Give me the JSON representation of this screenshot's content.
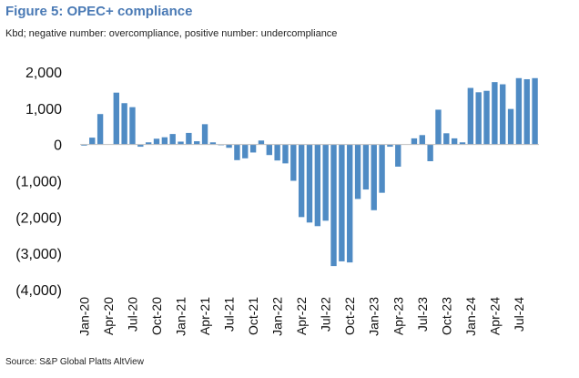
{
  "title": "Figure 5: OPEC+ compliance",
  "subtitle": "Kbd; negative number: overcompliance, positive number: undercompliance",
  "source": "Source: S&P Global Platts AltView",
  "colors": {
    "bar": "#4f8bc4",
    "title": "#4a7ab5",
    "axis": "#bfbfbf"
  },
  "chart_data": {
    "type": "bar",
    "categories": [
      "Jan-20",
      "Feb-20",
      "Mar-20",
      "Apr-20",
      "May-20",
      "Jun-20",
      "Jul-20",
      "Aug-20",
      "Sep-20",
      "Oct-20",
      "Nov-20",
      "Dec-20",
      "Jan-21",
      "Feb-21",
      "Mar-21",
      "Apr-21",
      "May-21",
      "Jun-21",
      "Jul-21",
      "Aug-21",
      "Sep-21",
      "Oct-21",
      "Nov-21",
      "Dec-21",
      "Jan-22",
      "Feb-22",
      "Mar-22",
      "Apr-22",
      "May-22",
      "Jun-22",
      "Jul-22",
      "Aug-22",
      "Sep-22",
      "Oct-22",
      "Nov-22",
      "Dec-22",
      "Jan-23",
      "Feb-23",
      "Mar-23",
      "Apr-23",
      "May-23",
      "Jun-23",
      "Jul-23",
      "Aug-23",
      "Sep-23",
      "Oct-23",
      "Nov-23",
      "Dec-23",
      "Jan-24",
      "Feb-24",
      "Mar-24",
      "Apr-24",
      "May-24",
      "Jun-24",
      "Jul-24",
      "Aug-24",
      "Sep-24"
    ],
    "values": [
      -30,
      190,
      840,
      0,
      1430,
      1140,
      1030,
      -60,
      60,
      160,
      200,
      290,
      80,
      320,
      90,
      560,
      60,
      -10,
      -90,
      -430,
      -380,
      -220,
      110,
      -290,
      -440,
      -520,
      -1000,
      -2000,
      -2150,
      -2250,
      -2100,
      -3350,
      -3220,
      -3250,
      -1500,
      -1240,
      -1810,
      -1330,
      -60,
      -610,
      0,
      170,
      260,
      -460,
      960,
      310,
      170,
      60,
      1560,
      1440,
      1480,
      1720,
      1660,
      980,
      1830,
      1800,
      1830
    ],
    "tick_labels_x": [
      "Jan-20",
      "Apr-20",
      "Jul-20",
      "Oct-20",
      "Jan-21",
      "Apr-21",
      "Jul-21",
      "Oct-21",
      "Jan-22",
      "Apr-22",
      "Jul-22",
      "Oct-22",
      "Jan-23",
      "Apr-23",
      "Jul-23",
      "Oct-23",
      "Jan-24",
      "Apr-24",
      "Jul-24"
    ],
    "tick_labels_y": [
      "2,000",
      "1,000",
      "0",
      "(1,000)",
      "(2,000)",
      "(3,000)",
      "(4,000)"
    ],
    "yticks": [
      2000,
      1000,
      0,
      -1000,
      -2000,
      -3000,
      -4000
    ],
    "ylim": [
      -4000,
      2000
    ],
    "grid": false,
    "legend": "none",
    "xlabel": "",
    "ylabel": ""
  }
}
